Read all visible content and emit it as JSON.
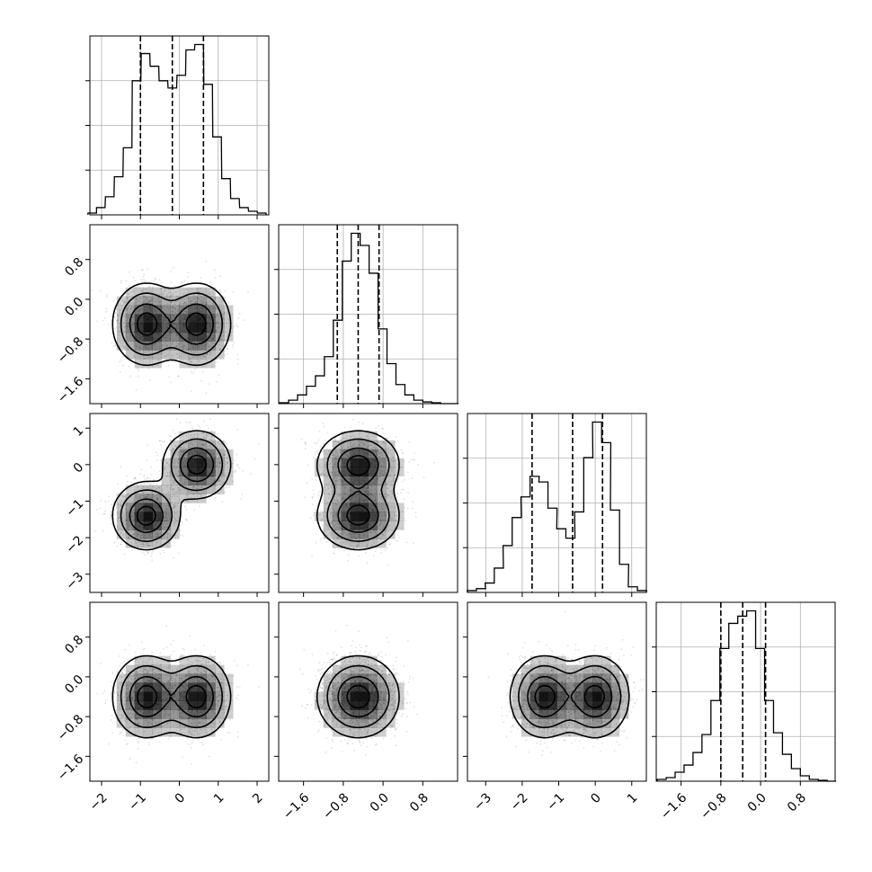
{
  "chart_data": {
    "type": "corner",
    "n_parameters": 4,
    "colors": {
      "line": "#000000",
      "grid": "#b0b0b0",
      "scatter": "#000000"
    },
    "grid": true,
    "parameters": [
      {
        "range": [
          -2.3,
          2.3
        ],
        "ticks": [
          -2,
          -1,
          0,
          1,
          2
        ],
        "tick_labels": [
          "−2",
          "−1",
          "0",
          "1",
          "2"
        ],
        "modes": [
          [
            -0.85,
            0.5
          ],
          [
            0.45,
            0.5
          ]
        ],
        "spread": 0.42,
        "quantiles": [
          -1.0,
          -0.18,
          0.62
        ],
        "hist_centers": [
          -2.24,
          -2.02,
          -1.79,
          -1.56,
          -1.33,
          -1.1,
          -0.87,
          -0.64,
          -0.41,
          -0.18,
          0.05,
          0.28,
          0.51,
          0.74,
          0.97,
          1.2,
          1.43,
          1.66,
          1.89,
          2.12
        ],
        "hist_values": [
          0.01,
          0.04,
          0.1,
          0.21,
          0.37,
          0.74,
          0.89,
          0.82,
          0.74,
          0.7,
          0.77,
          0.91,
          0.94,
          0.72,
          0.43,
          0.2,
          0.09,
          0.04,
          0.02,
          0.01
        ]
      },
      {
        "range": [
          -2.1,
          1.5
        ],
        "ticks": [
          -1.6,
          -0.8,
          0.0,
          0.8
        ],
        "tick_labels": [
          "−1.6",
          "−0.8",
          "0.0",
          "0.8"
        ],
        "modes": [
          [
            -0.5,
            1.0
          ]
        ],
        "spread": 0.4,
        "quantiles": [
          -0.92,
          -0.5,
          -0.08
        ],
        "hist_centers": [
          -1.99,
          -1.81,
          -1.63,
          -1.45,
          -1.27,
          -1.09,
          -0.91,
          -0.73,
          -0.55,
          -0.37,
          -0.19,
          -0.01,
          0.17,
          0.35,
          0.53,
          0.71,
          0.89,
          1.07,
          1.25,
          1.43
        ],
        "hist_values": [
          0.005,
          0.02,
          0.05,
          0.1,
          0.16,
          0.27,
          0.48,
          0.82,
          0.98,
          0.91,
          0.75,
          0.43,
          0.23,
          0.11,
          0.05,
          0.02,
          0.01,
          0.005,
          0.0,
          0.0
        ]
      },
      {
        "range": [
          -3.5,
          1.4
        ],
        "ticks": [
          -3,
          -2,
          -1,
          0,
          1
        ],
        "tick_labels": [
          "−3",
          "−2",
          "−1",
          "0",
          "1"
        ],
        "modes": [
          [
            -1.4,
            0.5
          ],
          [
            0.0,
            0.5
          ]
        ],
        "spread": 0.45,
        "quantiles": [
          -1.73,
          -0.62,
          0.2
        ],
        "hist_centers": [
          -3.38,
          -3.13,
          -2.89,
          -2.64,
          -2.4,
          -2.15,
          -1.91,
          -1.66,
          -1.42,
          -1.17,
          -0.93,
          -0.68,
          -0.44,
          -0.19,
          0.05,
          0.3,
          0.54,
          0.79,
          1.03,
          1.28
        ],
        "hist_values": [
          0.01,
          0.02,
          0.05,
          0.13,
          0.25,
          0.4,
          0.51,
          0.62,
          0.59,
          0.45,
          0.34,
          0.29,
          0.43,
          0.72,
          0.91,
          0.8,
          0.44,
          0.15,
          0.03,
          0.01
        ]
      },
      {
        "range": [
          -2.1,
          1.5
        ],
        "ticks": [
          -1.6,
          -0.8,
          0.0,
          0.8
        ],
        "tick_labels": [
          "−1.6",
          "−0.8",
          "0.0",
          "0.8"
        ],
        "modes": [
          [
            -0.4,
            1.0
          ]
        ],
        "spread": 0.4,
        "quantiles": [
          -0.8,
          -0.36,
          0.1
        ],
        "hist_centers": [
          -1.99,
          -1.81,
          -1.63,
          -1.45,
          -1.27,
          -1.09,
          -0.91,
          -0.73,
          -0.55,
          -0.37,
          -0.19,
          -0.01,
          0.17,
          0.35,
          0.53,
          0.71,
          0.89,
          1.07,
          1.25,
          1.43
        ],
        "hist_values": [
          0.01,
          0.02,
          0.05,
          0.09,
          0.16,
          0.26,
          0.45,
          0.74,
          0.88,
          0.92,
          0.95,
          0.74,
          0.45,
          0.27,
          0.15,
          0.07,
          0.03,
          0.01,
          0.005,
          0.0
        ]
      }
    ],
    "contour_levels": [
      0.12,
      0.3,
      0.6,
      0.85
    ]
  }
}
